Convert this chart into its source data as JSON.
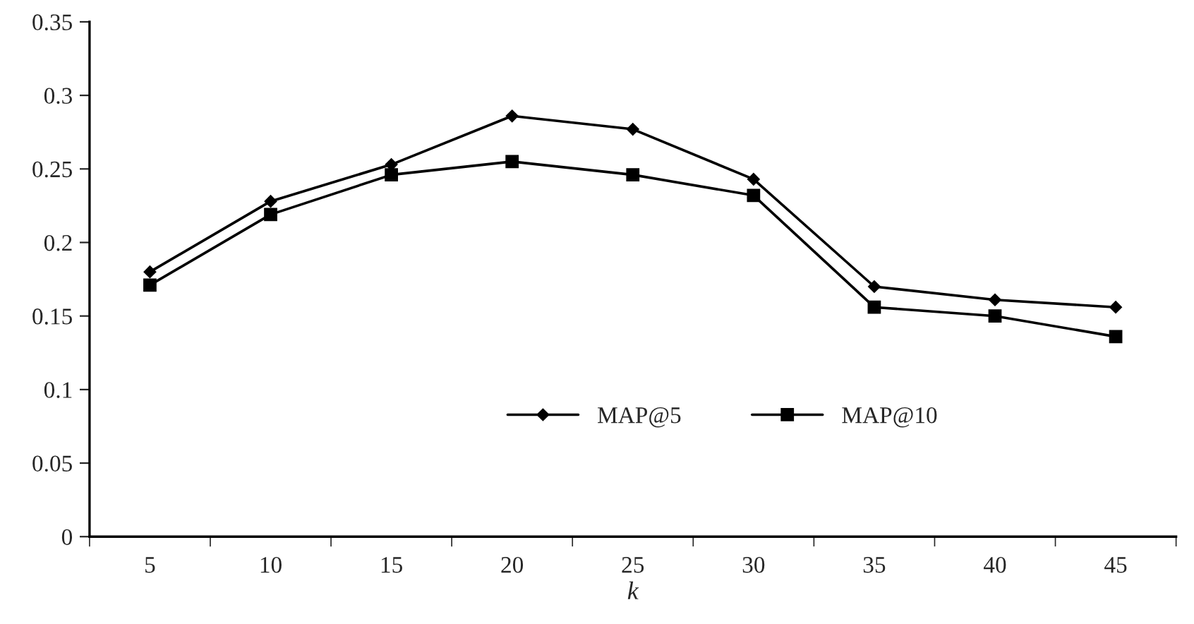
{
  "chart_data": {
    "type": "line",
    "xlabel": "k",
    "categories": [
      "5",
      "10",
      "15",
      "20",
      "25",
      "30",
      "35",
      "40",
      "45"
    ],
    "series": [
      {
        "name": "MAP@5",
        "color": "#000000",
        "marker": "diamond",
        "values": [
          0.18,
          0.228,
          0.253,
          0.286,
          0.277,
          0.243,
          0.17,
          0.161,
          0.156
        ]
      },
      {
        "name": "MAP@10",
        "color": "#000000",
        "marker": "square",
        "values": [
          0.171,
          0.219,
          0.246,
          0.255,
          0.246,
          0.232,
          0.156,
          0.15,
          0.136
        ]
      }
    ],
    "ylim": [
      0,
      0.35
    ],
    "yticks": [
      0,
      0.05,
      0.1,
      0.15,
      0.2,
      0.25,
      0.3,
      0.35
    ],
    "grid": false,
    "legend": "bottom right",
    "line_style": "solid"
  }
}
